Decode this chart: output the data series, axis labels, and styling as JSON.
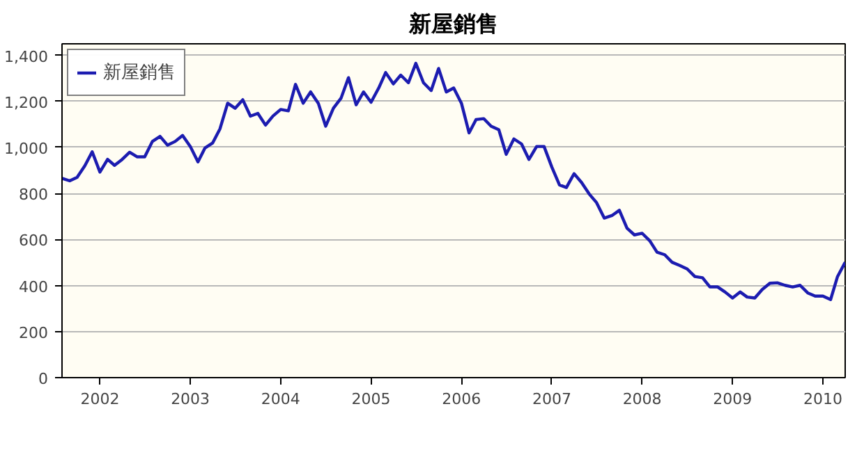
{
  "chart_data": {
    "type": "line",
    "title": "新屋銷售",
    "x": [
      "2001-08",
      "2001-09",
      "2001-10",
      "2001-11",
      "2001-12",
      "2002-01",
      "2002-02",
      "2002-03",
      "2002-04",
      "2002-05",
      "2002-06",
      "2002-07",
      "2002-08",
      "2002-09",
      "2002-10",
      "2002-11",
      "2002-12",
      "2003-01",
      "2003-02",
      "2003-03",
      "2003-04",
      "2003-05",
      "2003-06",
      "2003-07",
      "2003-08",
      "2003-09",
      "2003-10",
      "2003-11",
      "2003-12",
      "2004-01",
      "2004-02",
      "2004-03",
      "2004-04",
      "2004-05",
      "2004-06",
      "2004-07",
      "2004-08",
      "2004-09",
      "2004-10",
      "2004-11",
      "2004-12",
      "2005-01",
      "2005-02",
      "2005-03",
      "2005-04",
      "2005-05",
      "2005-06",
      "2005-07",
      "2005-08",
      "2005-09",
      "2005-10",
      "2005-11",
      "2005-12",
      "2006-01",
      "2006-02",
      "2006-03",
      "2006-04",
      "2006-05",
      "2006-06",
      "2006-07",
      "2006-08",
      "2006-09",
      "2006-10",
      "2006-11",
      "2006-12",
      "2007-01",
      "2007-02",
      "2007-03",
      "2007-04",
      "2007-05",
      "2007-06",
      "2007-07",
      "2007-08",
      "2007-09",
      "2007-10",
      "2007-11",
      "2007-12",
      "2008-01",
      "2008-02",
      "2008-03",
      "2008-04",
      "2008-05",
      "2008-06",
      "2008-07",
      "2008-08",
      "2008-09",
      "2008-10",
      "2008-11",
      "2008-12",
      "2009-01",
      "2009-02",
      "2009-03",
      "2009-04",
      "2009-05",
      "2009-06",
      "2009-07",
      "2009-08",
      "2009-09",
      "2009-10",
      "2009-11",
      "2009-12",
      "2010-01",
      "2010-02",
      "2010-03",
      "2010-04"
    ],
    "series": [
      {
        "name": "新屋銷售",
        "color": "#1c1cb0",
        "values": [
          866,
          855,
          870,
          920,
          981,
          893,
          948,
          922,
          948,
          979,
          959,
          959,
          1026,
          1048,
          1010,
          1026,
          1052,
          1004,
          937,
          997,
          1019,
          1081,
          1192,
          1170,
          1207,
          1136,
          1148,
          1097,
          1136,
          1165,
          1159,
          1274,
          1192,
          1241,
          1192,
          1092,
          1170,
          1214,
          1303,
          1185,
          1241,
          1196,
          1258,
          1325,
          1276,
          1314,
          1281,
          1365,
          1281,
          1247,
          1343,
          1241,
          1258,
          1192,
          1063,
          1121,
          1125,
          1092,
          1077,
          970,
          1037,
          1015,
          948,
          1004,
          1004,
          915,
          837,
          826,
          886,
          848,
          798,
          760,
          693,
          704,
          727,
          649,
          620,
          627,
          594,
          545,
          534,
          501,
          487,
          472,
          439,
          434,
          394,
          394,
          372,
          346,
          372,
          350,
          346,
          383,
          410,
          412,
          401,
          394,
          401,
          368,
          354,
          354,
          339,
          439,
          501
        ]
      }
    ],
    "xlim": [
      "2001-08",
      "2010-04"
    ],
    "xticks": [
      "2002",
      "2003",
      "2004",
      "2005",
      "2006",
      "2007",
      "2008",
      "2009",
      "2010"
    ],
    "ylim": [
      0,
      1450
    ],
    "yticks": [
      0,
      200,
      400,
      600,
      800,
      {
        "value": 1000,
        "label": "1,000"
      },
      {
        "value": 1200,
        "label": "1,200"
      },
      {
        "value": 1400,
        "label": "1,400"
      }
    ],
    "grid": "y",
    "legend": "top left",
    "marker": "none",
    "line_style": "solid"
  }
}
